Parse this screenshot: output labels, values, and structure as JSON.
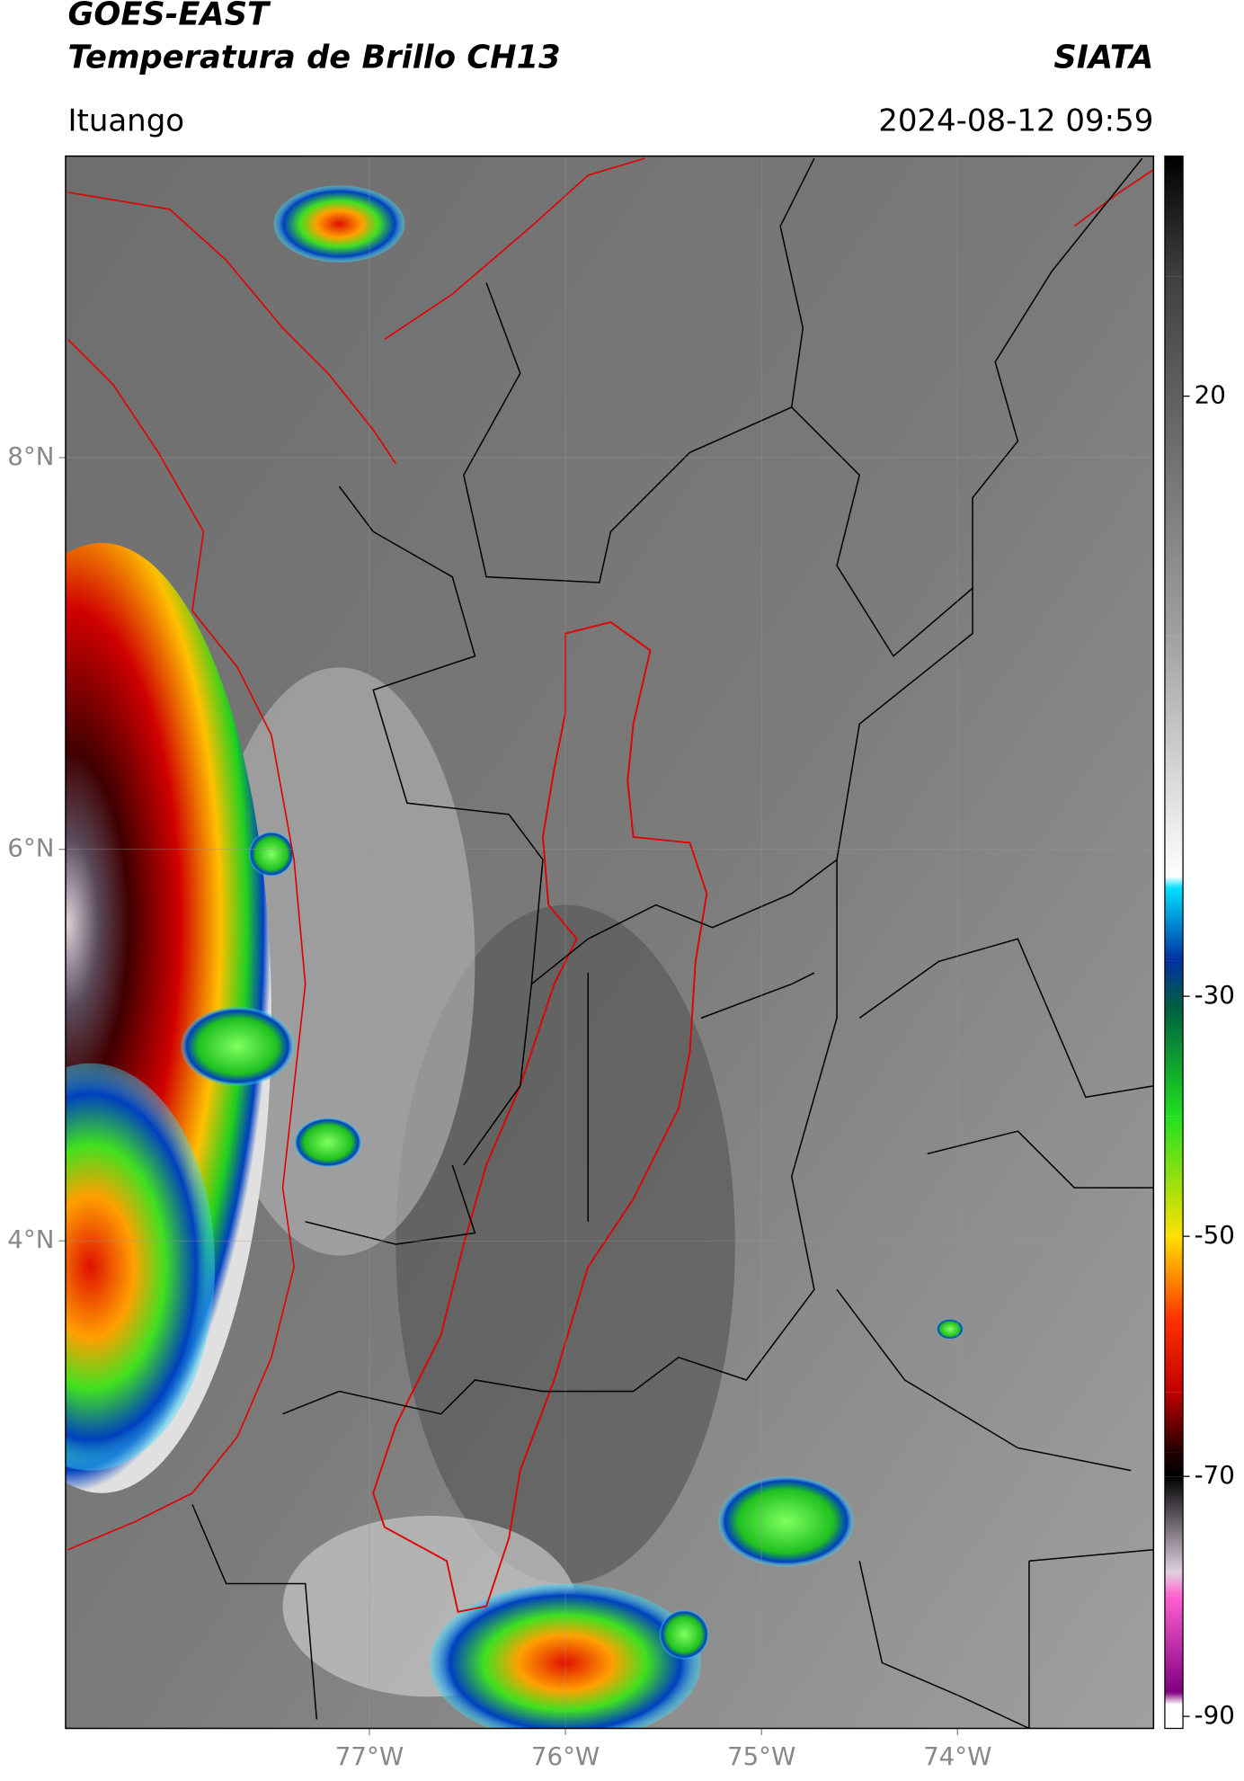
{
  "chart_data": {
    "type": "map",
    "title": "GOES-EAST",
    "subtitle": "Temperatura de Brillo CH13",
    "source": "SIATA",
    "location": "Ituango",
    "datetime": "2024-08-12 09:59",
    "xlim": [
      -78.55,
      -73.0
    ],
    "ylim": [
      1.51,
      9.54
    ],
    "xticks": [
      {
        "value": -77,
        "label": "77°W"
      },
      {
        "value": -76,
        "label": "76°W"
      },
      {
        "value": -75,
        "label": "75°W"
      },
      {
        "value": -74,
        "label": "74°W"
      }
    ],
    "yticks": [
      {
        "value": 4,
        "label": "4°N"
      },
      {
        "value": 6,
        "label": "6°N"
      },
      {
        "value": 8,
        "label": "8°N"
      }
    ],
    "grid": true,
    "colorbar": {
      "lim": [
        -91,
        40
      ],
      "ticks": [
        20,
        -30,
        -50,
        -70,
        -90
      ],
      "stops": [
        {
          "value": 40,
          "color": "#000000"
        },
        {
          "value": 30,
          "color": "#404040"
        },
        {
          "value": 0,
          "color": "#a0a0a0"
        },
        {
          "value": -20,
          "color": "#ffffff"
        },
        {
          "value": -21,
          "color": "#00e0ff"
        },
        {
          "value": -27,
          "color": "#0030a0"
        },
        {
          "value": -31,
          "color": "#006040"
        },
        {
          "value": -40,
          "color": "#20e020"
        },
        {
          "value": -50,
          "color": "#ffe000"
        },
        {
          "value": -57,
          "color": "#ff3000"
        },
        {
          "value": -63,
          "color": "#c00000"
        },
        {
          "value": -68,
          "color": "#200000"
        },
        {
          "value": -70,
          "color": "#000000"
        },
        {
          "value": -78,
          "color": "#e0d0e0"
        },
        {
          "value": -80,
          "color": "#ff60d0"
        },
        {
          "value": -88,
          "color": "#800080"
        },
        {
          "value": -89,
          "color": "#ffffff"
        }
      ]
    }
  }
}
